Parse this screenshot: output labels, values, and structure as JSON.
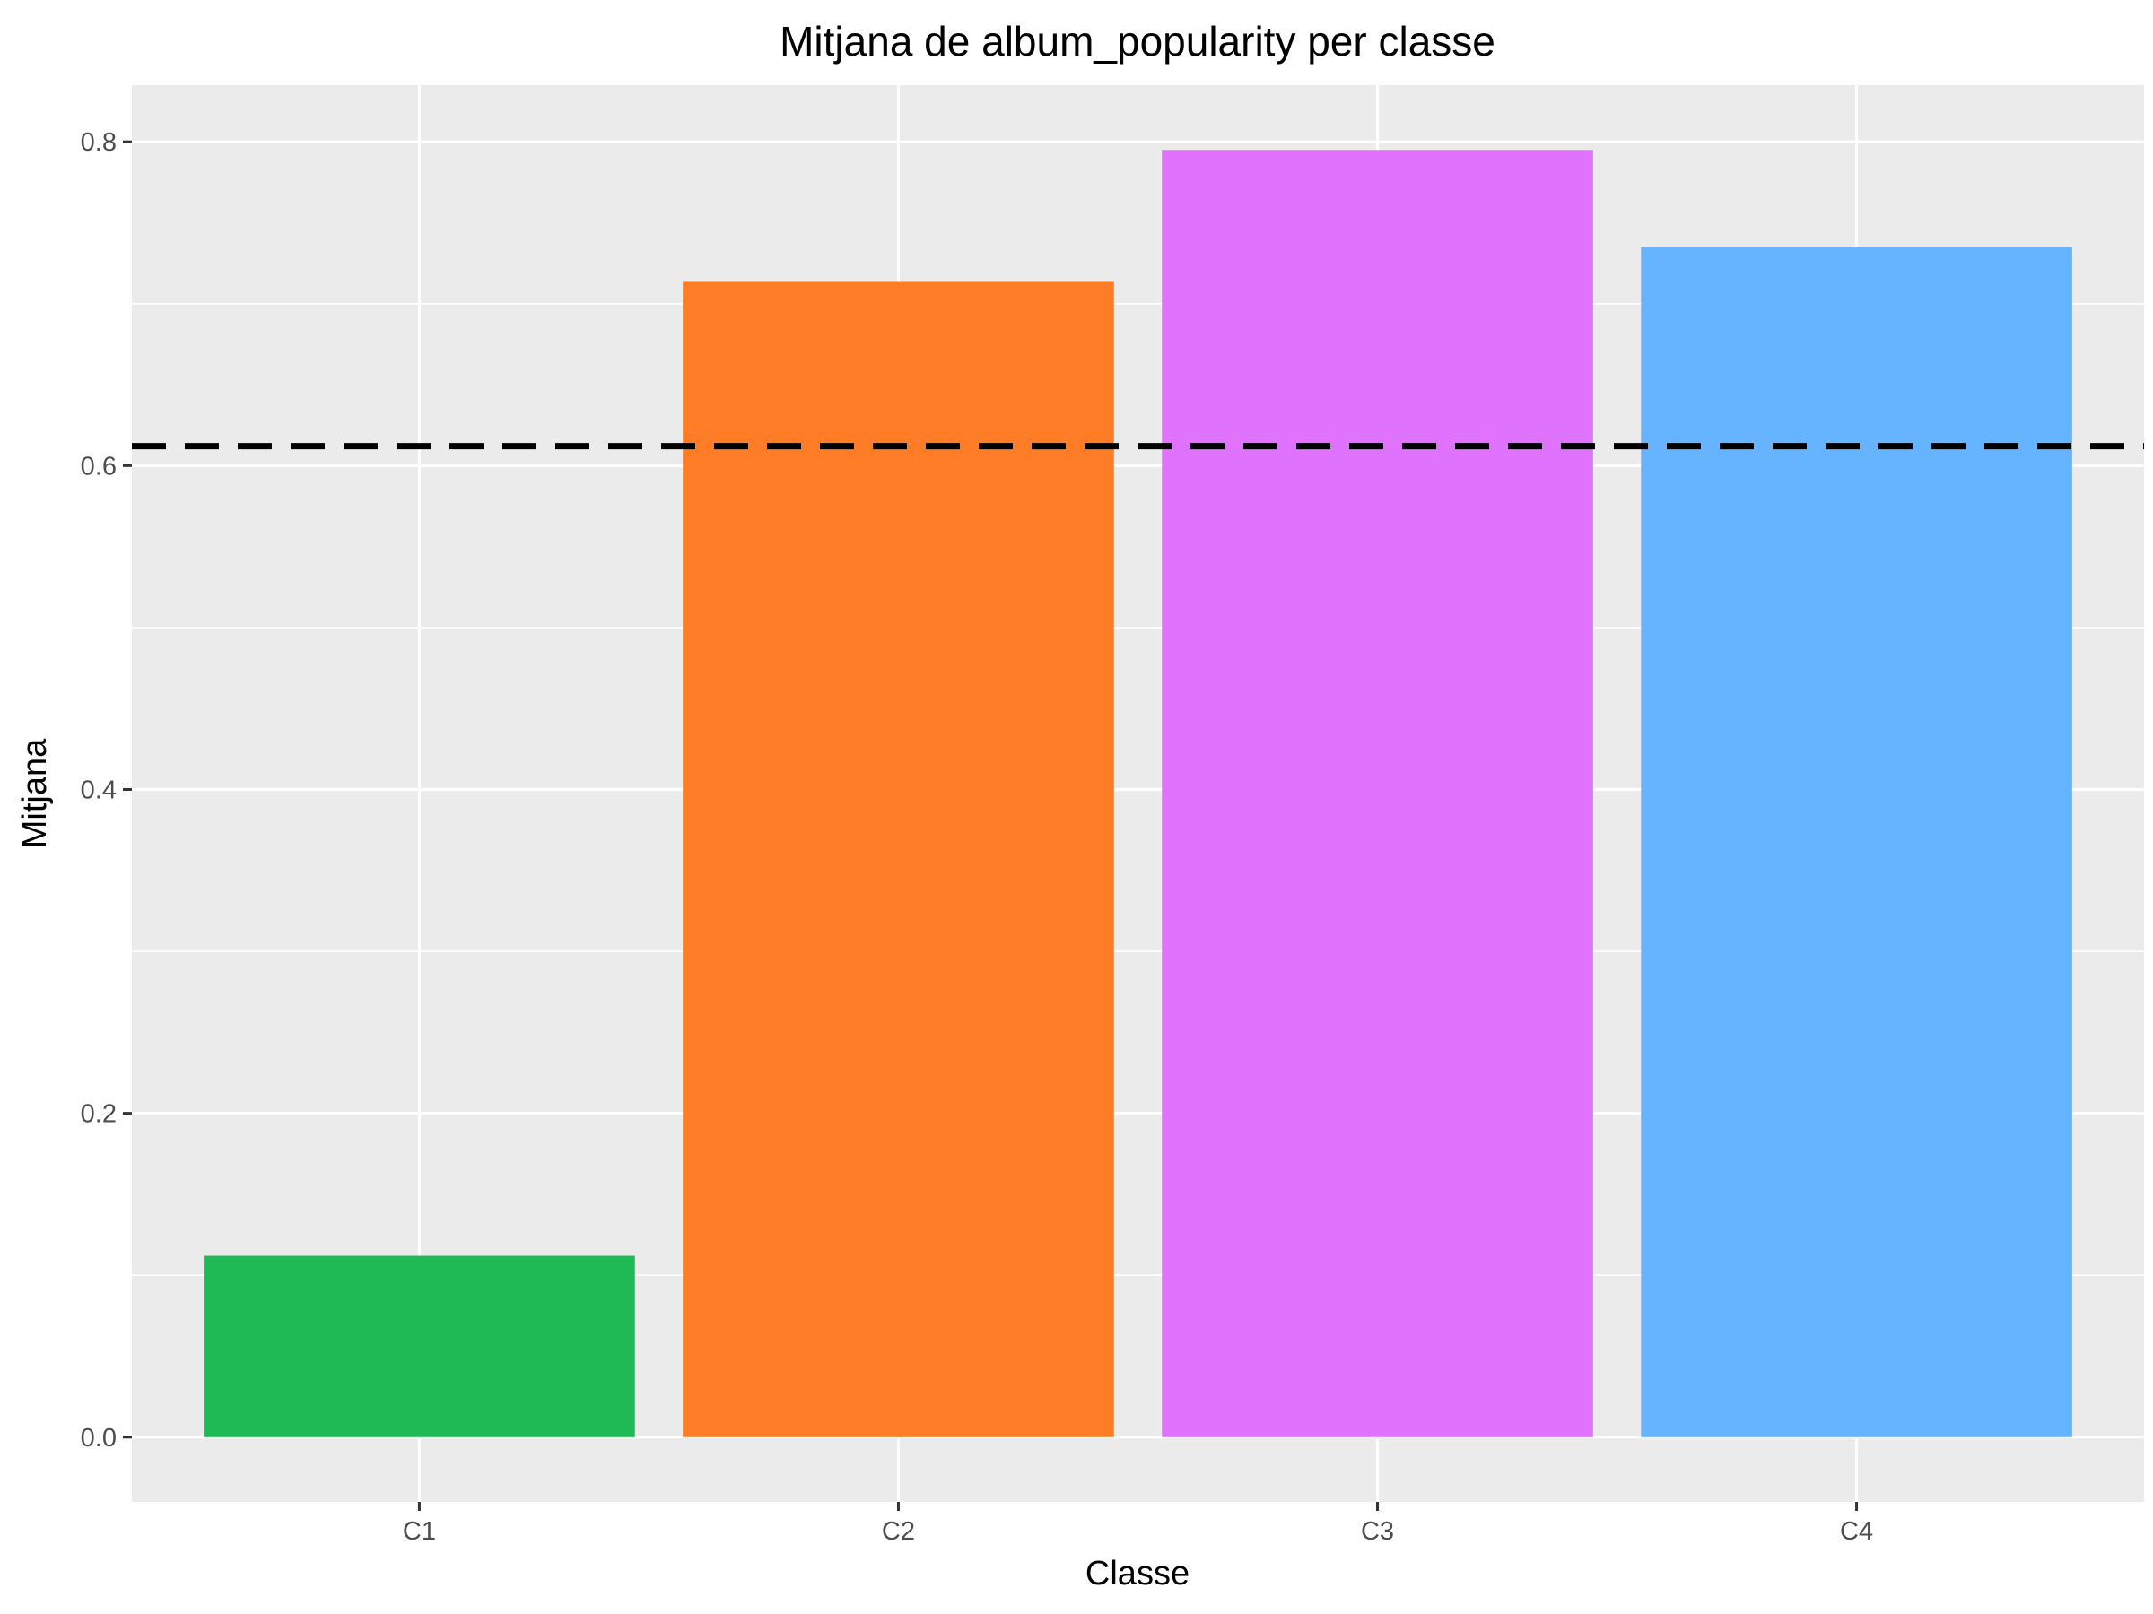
{
  "chart_data": {
    "type": "bar",
    "title": "Mitjana de album_popularity per classe",
    "xlabel": "Classe",
    "ylabel": "Mitjana",
    "categories": [
      "C1",
      "C2",
      "C3",
      "C4"
    ],
    "values": [
      0.112,
      0.714,
      0.795,
      0.735
    ],
    "colors": [
      "#1fba55",
      "#ff7d26",
      "#df73fe",
      "#66b4ff"
    ],
    "reference_line": {
      "value": 0.612,
      "style": "dashed",
      "color": "#000000"
    },
    "ylim": [
      -0.04,
      0.835
    ],
    "yticks": [
      0.0,
      0.2,
      0.4,
      0.6,
      0.8
    ],
    "ytick_labels": [
      "0.0",
      "0.2",
      "0.4",
      "0.6",
      "0.8"
    ],
    "grid": true,
    "panel_background": "#ebebeb",
    "legend": "none"
  }
}
